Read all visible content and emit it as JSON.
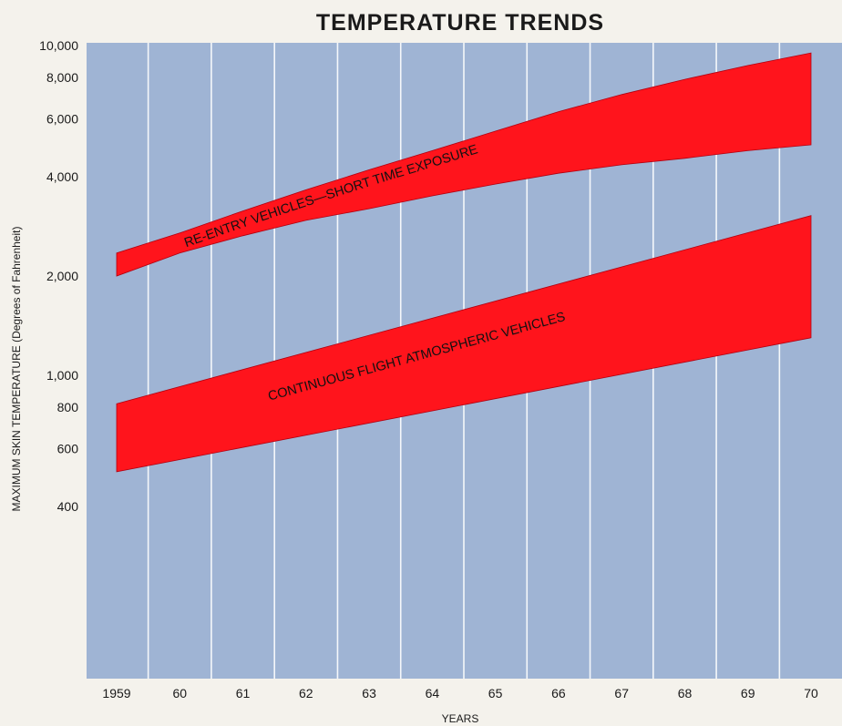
{
  "chart_data": {
    "type": "area",
    "title": "TEMPERATURE TRENDS",
    "xlabel": "YEARS",
    "ylabel": "MAXIMUM SKIN TEMPERATURE (Degrees of Fahrenheit)",
    "y_scale": "log",
    "ylim": [
      250,
      10000
    ],
    "xlim": [
      1959,
      1970
    ],
    "x_tick_labels": [
      "1959",
      "60",
      "61",
      "62",
      "63",
      "64",
      "65",
      "66",
      "67",
      "68",
      "69",
      "70"
    ],
    "y_ticks": [
      {
        "value": 400,
        "label": "400"
      },
      {
        "value": 600,
        "label": "600"
      },
      {
        "value": 800,
        "label": "800"
      },
      {
        "value": 1000,
        "label": "1,000"
      },
      {
        "value": 2000,
        "label": "2,000"
      },
      {
        "value": 4000,
        "label": "4,000"
      },
      {
        "value": 6000,
        "label": "6,000"
      },
      {
        "value": 8000,
        "label": "8,000"
      },
      {
        "value": 10000,
        "label": "10,000"
      }
    ],
    "grid": "vertical",
    "series": [
      {
        "name": "RE-ENTRY VEHICLES—SHORT TIME EXPOSURE",
        "x": [
          1959,
          1960,
          1961,
          1962,
          1963,
          1964,
          1965,
          1966,
          1967,
          1968,
          1969,
          1970
        ],
        "upper": [
          2350,
          2700,
          3150,
          3650,
          4200,
          4800,
          5500,
          6300,
          7100,
          7900,
          8700,
          9500
        ],
        "lower": [
          2000,
          2350,
          2650,
          2950,
          3200,
          3500,
          3800,
          4100,
          4350,
          4550,
          4800,
          5000
        ]
      },
      {
        "name": "CONTINUOUS FLIGHT ATMOSPHERIC VEHICLES",
        "x": [
          1959,
          1970
        ],
        "upper": [
          820,
          3050
        ],
        "lower": [
          510,
          1300
        ]
      }
    ],
    "colors": {
      "background": "#9fb4d4",
      "band": "#ff141c",
      "grid": "#ffffff"
    }
  }
}
